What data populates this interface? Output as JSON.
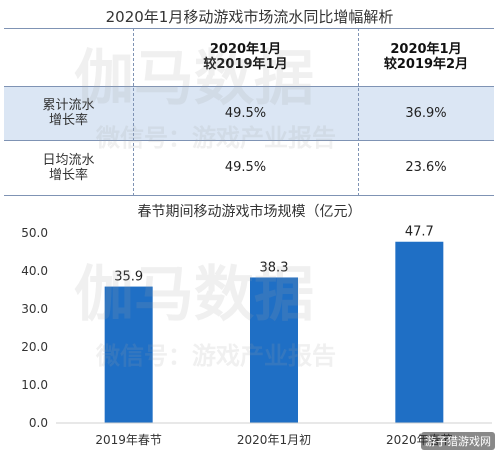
{
  "table": {
    "title": "2020年1月移动游戏市场流水同比增幅解析",
    "columns": [
      {
        "line1": "2020年1月",
        "line2": "较2019年1月"
      },
      {
        "line1": "2020年1月",
        "line2": "较2019年2月"
      }
    ],
    "rows": [
      {
        "label_line1": "累计流水",
        "label_line2": "增长率",
        "values": [
          "49.5%",
          "36.9%"
        ]
      },
      {
        "label_line1": "日均流水",
        "label_line2": "增长率",
        "values": [
          "49.5%",
          "23.6%"
        ]
      }
    ]
  },
  "colors": {
    "bar": "#1f6fc5",
    "table_highlight_row": "#dbe6f4",
    "table_line": "#7f93b4"
  },
  "chart_data": {
    "type": "bar",
    "title": "春节期间移动游戏市场规模（亿元）",
    "categories": [
      "2019年春节",
      "2020年1月初",
      "2020年春节"
    ],
    "values": [
      35.9,
      38.3,
      47.7
    ],
    "value_labels": [
      "35.9",
      "38.3",
      "47.7"
    ],
    "ylim": [
      0,
      50
    ],
    "yticks": [
      "0.0",
      "10.0",
      "20.0",
      "30.0",
      "40.0",
      "50.0"
    ],
    "grid": false,
    "xlabel": "",
    "ylabel": ""
  },
  "watermarks": {
    "brand": "伽马数据",
    "subtitle": "微信号：游戏产业报告"
  },
  "corner_mark": "游子猎游戏网"
}
